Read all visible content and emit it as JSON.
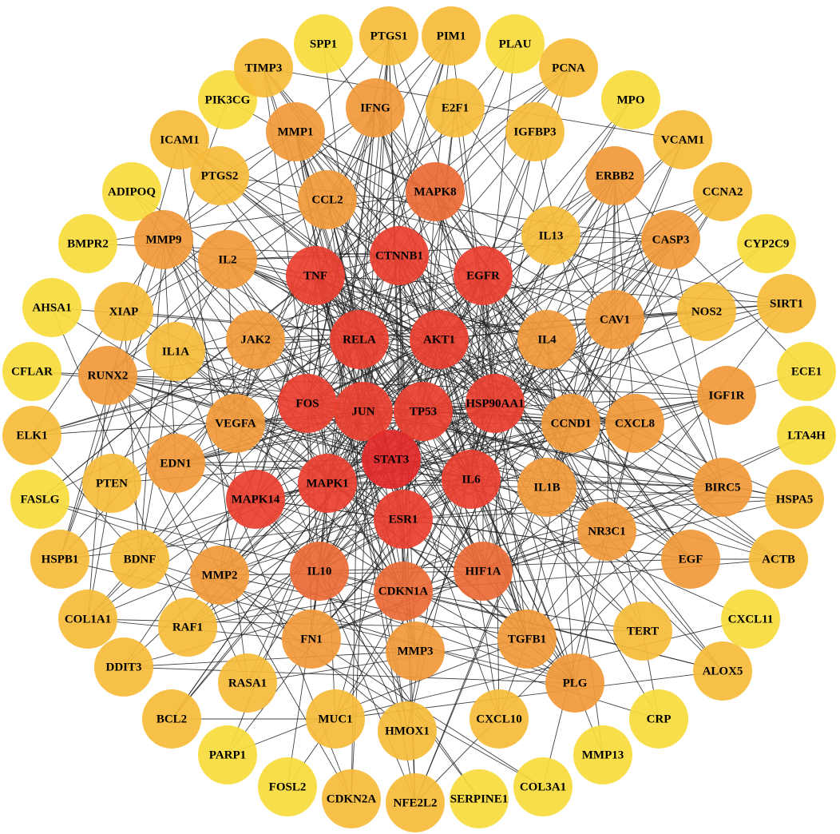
{
  "nodes": [
    "SPP1",
    "PTGS1",
    "PIM1",
    "PLAU",
    "PCNA",
    "MPO",
    "VCAM1",
    "CCNA2",
    "CYP2C9",
    "SIRT1",
    "ECE1",
    "LTA4H",
    "HSPA5",
    "ACTB",
    "CXCL11",
    "ALOX5",
    "CRP",
    "MMP13",
    "COL3A1",
    "SERPINE1",
    "NFE2L2",
    "CDKN2A",
    "FOSL2",
    "PARP1",
    "BCL2",
    "DDIT3",
    "COL1A1",
    "HSPB1",
    "FASLG",
    "ELK1",
    "CFLAR",
    "AHSA1",
    "BMPR2",
    "ADIPOQ",
    "ICAM1",
    "PIK3CG",
    "TIMP3",
    "IFNG",
    "E2F1",
    "MMP1",
    "IGFBP3",
    "PTGS2",
    "ERBB2",
    "CCL2",
    "MAPK8",
    "MMP9",
    "IL13",
    "CASP3",
    "IL2",
    "XIAP",
    "NOS2",
    "CAV1",
    "IL4",
    "JAK2",
    "IL1A",
    "RUNX2",
    "IGF1R",
    "CCND1",
    "CXCL8",
    "VEGFA",
    "EDN1",
    "PTEN",
    "BIRC5",
    "IL1B",
    "NR3C1",
    "EGF",
    "BDNF",
    "MMP2",
    "IL10",
    "CDKN1A",
    "HIF1A",
    "TGFB1",
    "TERT",
    "RAF1",
    "FN1",
    "MMP3",
    "PLG",
    "RASA1",
    "MUC1",
    "HMOX1",
    "CXCL10",
    "CTNNB1",
    "TNF",
    "EGFR",
    "RELA",
    "AKT1",
    "FOS",
    "JUN",
    "TP53",
    "HSP90AA1",
    "STAT3",
    "MAPK1",
    "IL6",
    "MAPK14",
    "ESR1"
  ]
}
